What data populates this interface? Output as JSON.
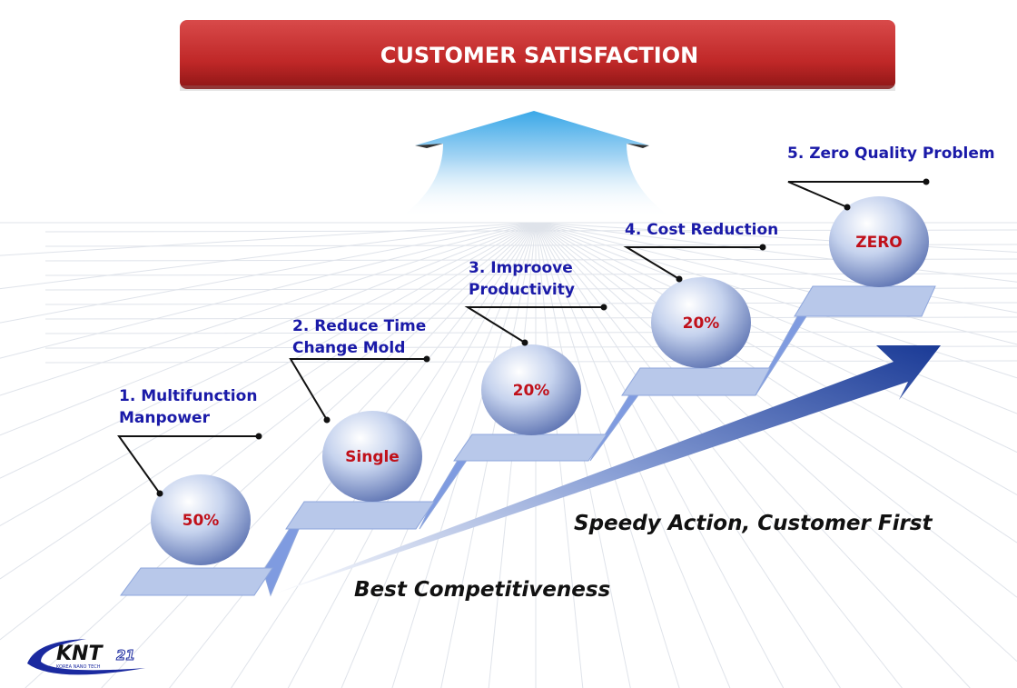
{
  "banner": {
    "title": "CUSTOMER SATISFACTION",
    "color": "#c93232"
  },
  "steps": [
    {
      "label_lines": [
        "1.     Multifunction",
        "Manpower"
      ],
      "value": "50%"
    },
    {
      "label_lines": [
        "2. Reduce Time",
        "Change Mold"
      ],
      "value": "Single"
    },
    {
      "label_lines": [
        "3. Improove",
        "Productivity"
      ],
      "value": "20%"
    },
    {
      "label_lines": [
        "4. Cost Reduction"
      ],
      "value": "20%"
    },
    {
      "label_lines": [
        "5. Zero Quality Problem"
      ],
      "value": "ZERO"
    }
  ],
  "slogans": {
    "upper": "Speedy Action, Customer First",
    "lower": "Best Competitiveness"
  },
  "logo": {
    "text": "KNT",
    "number": "21",
    "subtitle": "KOREA NANO TECH"
  },
  "colors": {
    "label": "#1a1aa8",
    "value": "#c0101a",
    "platform": "#b8c8ea",
    "arrow": "#1e3f9a"
  }
}
